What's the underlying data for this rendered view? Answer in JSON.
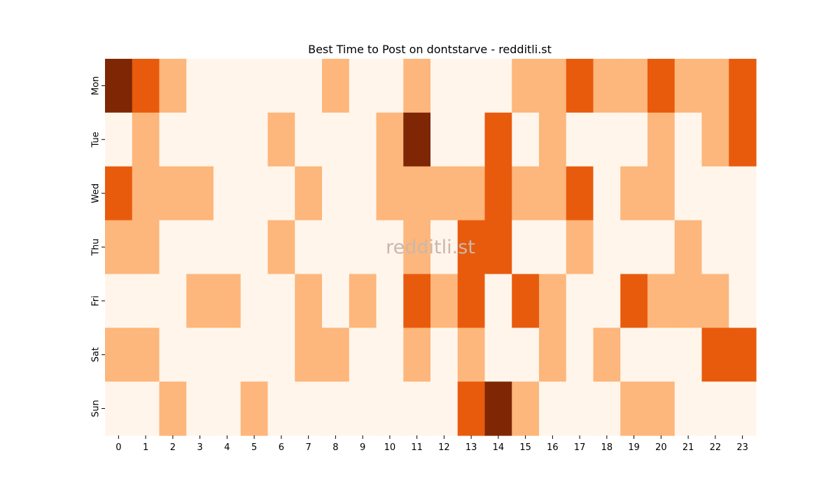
{
  "chart_data": {
    "type": "heatmap",
    "title": "Best Time to Post on dontstarve - redditli.st",
    "watermark": "redditli.st",
    "xlabel": "",
    "ylabel": "",
    "x": [
      "0",
      "1",
      "2",
      "3",
      "4",
      "5",
      "6",
      "7",
      "8",
      "9",
      "10",
      "11",
      "12",
      "13",
      "14",
      "15",
      "16",
      "17",
      "18",
      "19",
      "20",
      "21",
      "22",
      "23"
    ],
    "y": [
      "Mon",
      "Tue",
      "Wed",
      "Thu",
      "Fri",
      "Sat",
      "Sun"
    ],
    "colorbar": false,
    "colors": [
      "#fff5eb",
      "#fdb67b",
      "#e85b0d",
      "#7f2704"
    ],
    "values": [
      [
        3,
        2,
        1,
        0,
        0,
        0,
        0,
        0,
        1,
        0,
        0,
        1,
        0,
        0,
        0,
        1,
        1,
        2,
        1,
        1,
        2,
        1,
        1,
        2
      ],
      [
        0,
        1,
        0,
        0,
        0,
        0,
        1,
        0,
        0,
        0,
        1,
        3,
        0,
        0,
        2,
        0,
        1,
        0,
        0,
        0,
        1,
        0,
        1,
        2
      ],
      [
        2,
        1,
        1,
        1,
        0,
        0,
        0,
        1,
        0,
        0,
        1,
        1,
        1,
        1,
        2,
        1,
        1,
        2,
        0,
        1,
        1,
        0,
        0,
        0
      ],
      [
        1,
        1,
        0,
        0,
        0,
        0,
        1,
        0,
        0,
        0,
        0,
        1,
        0,
        2,
        2,
        0,
        0,
        1,
        0,
        0,
        0,
        1,
        0,
        0
      ],
      [
        0,
        0,
        0,
        1,
        1,
        0,
        0,
        1,
        0,
        1,
        0,
        2,
        1,
        2,
        0,
        2,
        1,
        0,
        0,
        2,
        1,
        1,
        1,
        0
      ],
      [
        1,
        1,
        0,
        0,
        0,
        0,
        0,
        1,
        1,
        0,
        0,
        1,
        0,
        1,
        0,
        0,
        1,
        0,
        1,
        0,
        0,
        0,
        2,
        2
      ],
      [
        0,
        0,
        1,
        0,
        0,
        1,
        0,
        0,
        0,
        0,
        0,
        0,
        0,
        2,
        3,
        1,
        0,
        0,
        0,
        1,
        1,
        0,
        0,
        0
      ]
    ]
  }
}
